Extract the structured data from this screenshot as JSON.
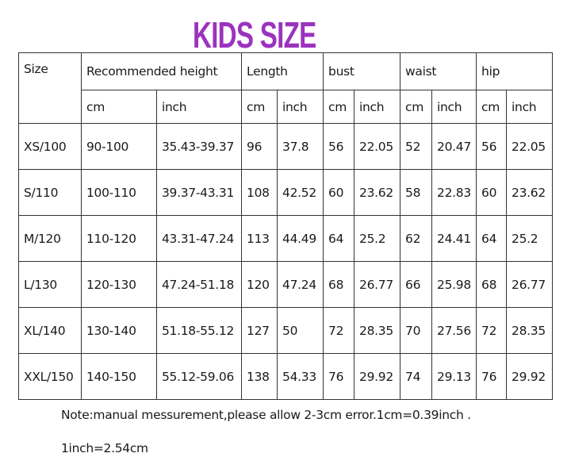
{
  "title": "KIDS SIZE",
  "title_color": "#9b33bf",
  "table": {
    "header_groups": [
      "Size",
      "Recommended height",
      "Length",
      "bust",
      "waist",
      "hip"
    ],
    "sub_headers": [
      "cm",
      "inch",
      "cm",
      "inch",
      "cm",
      "inch",
      "cm",
      "inch",
      "cm",
      "inch"
    ],
    "rows": [
      [
        "XS/100",
        "90-100",
        "35.43-39.37",
        "96",
        "37.8",
        "56",
        "22.05",
        "52",
        "20.47",
        "56",
        "22.05"
      ],
      [
        "S/110",
        "100-110",
        "39.37-43.31",
        "108",
        "42.52",
        "60",
        "23.62",
        "58",
        "22.83",
        "60",
        "23.62"
      ],
      [
        "M/120",
        "110-120",
        "43.31-47.24",
        "113",
        "44.49",
        "64",
        "25.2",
        "62",
        "24.41",
        "64",
        "25.2"
      ],
      [
        "L/130",
        "120-130",
        "47.24-51.18",
        "120",
        "47.24",
        "68",
        "26.77",
        "66",
        "25.98",
        "68",
        "26.77"
      ],
      [
        "XL/140",
        "130-140",
        "51.18-55.12",
        "127",
        "50",
        "72",
        "28.35",
        "70",
        "27.56",
        "72",
        "28.35"
      ],
      [
        "XXL/150",
        "140-150",
        "55.12-59.06",
        "138",
        "54.33",
        "76",
        "29.92",
        "74",
        "29.13",
        "76",
        "29.92"
      ]
    ]
  },
  "notes": [
    "Note:manual messurement,please allow 2-3cm error.1cm=0.39inch .",
    "1inch=2.54cm"
  ]
}
